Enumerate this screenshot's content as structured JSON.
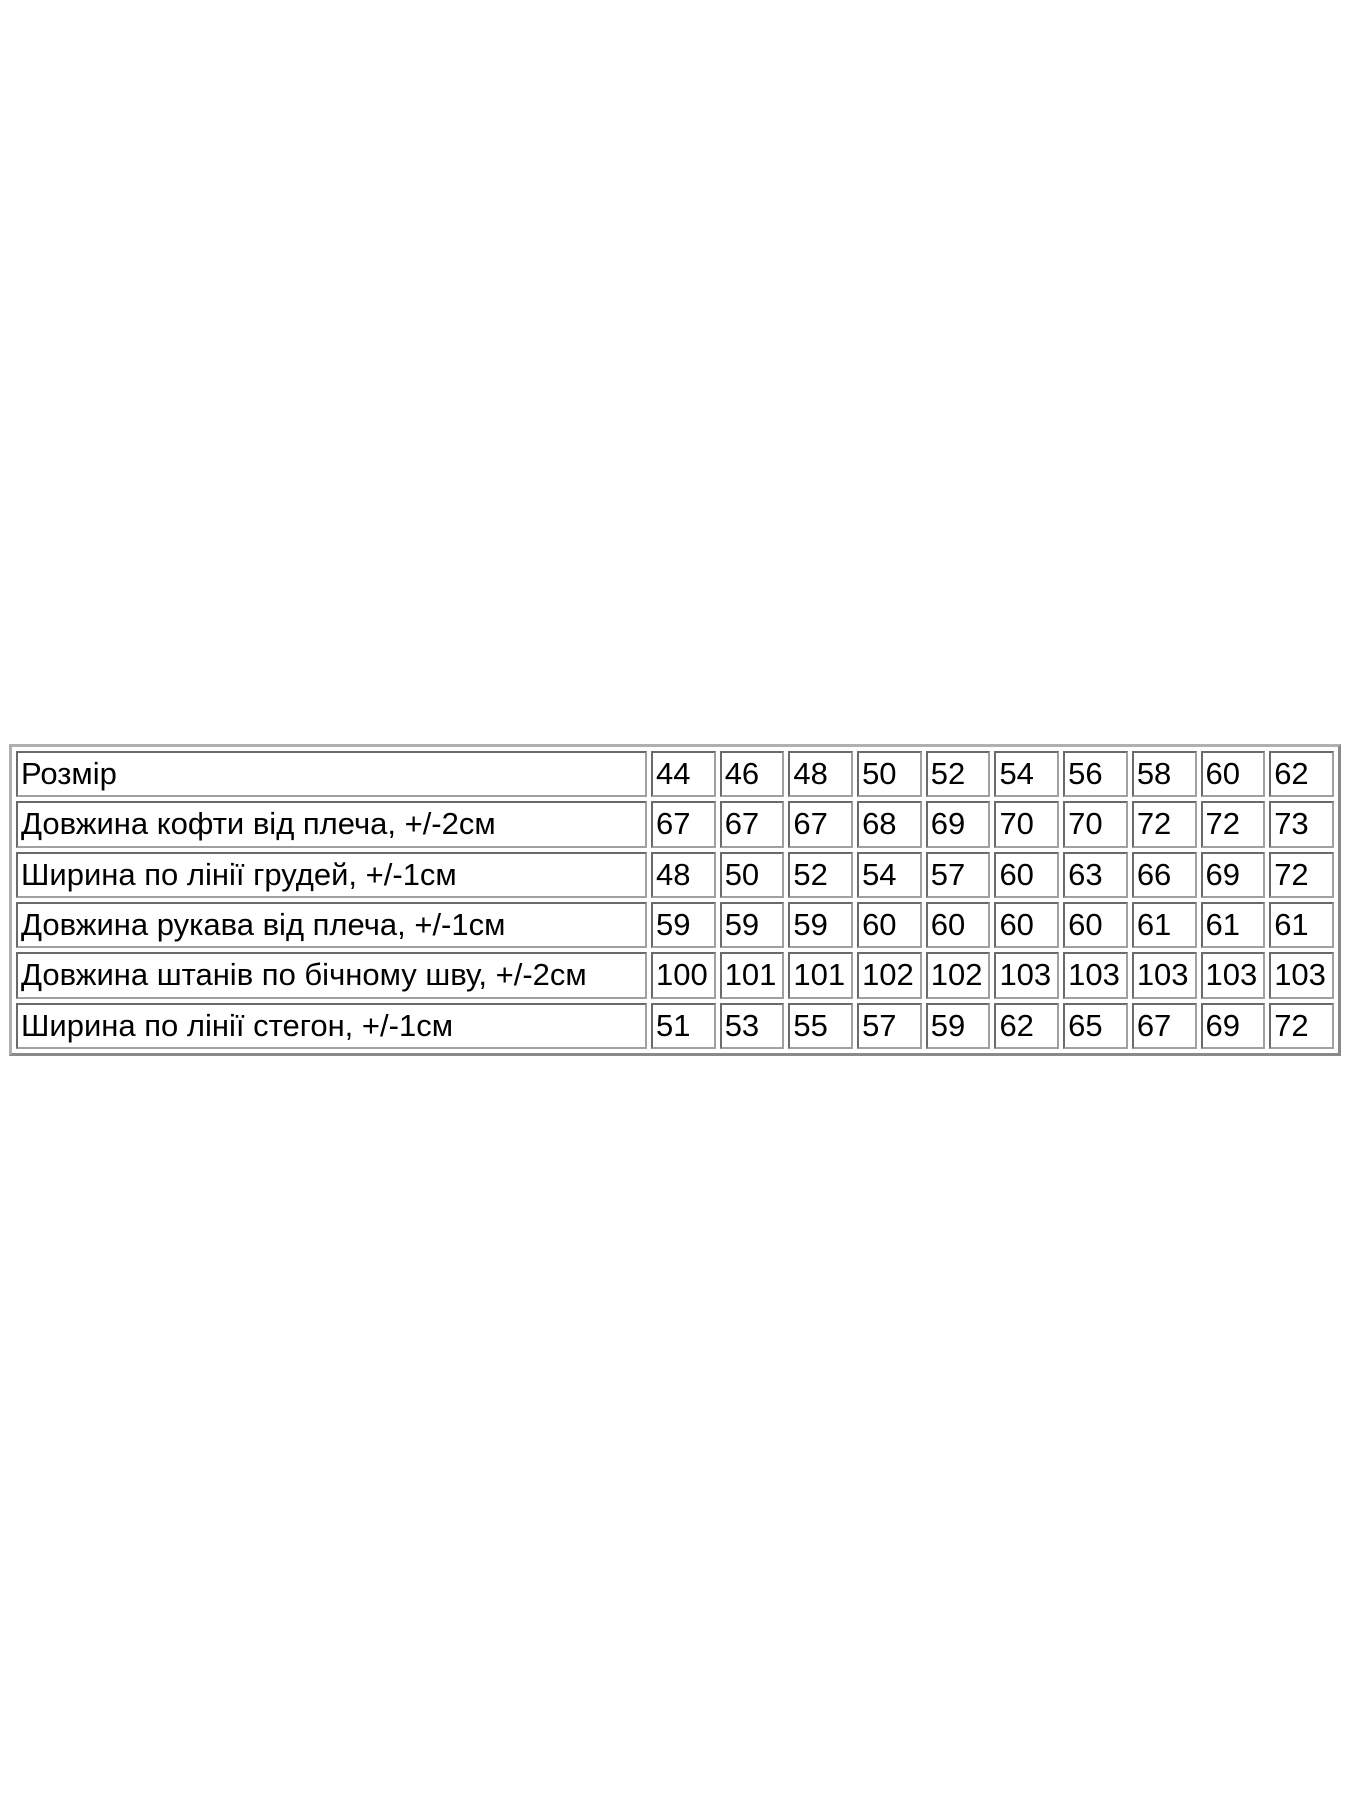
{
  "size_table": {
    "rows": [
      {
        "label": "Розмір",
        "values": [
          "44",
          "46",
          "48",
          "50",
          "52",
          "54",
          "56",
          "58",
          "60",
          "62"
        ]
      },
      {
        "label": "Довжина кофти від плеча, +/-2см",
        "values": [
          "67",
          "67",
          "67",
          "68",
          "69",
          "70",
          "70",
          "72",
          "72",
          "73"
        ]
      },
      {
        "label": "Ширина по лінії грудей, +/-1см",
        "values": [
          "48",
          "50",
          "52",
          "54",
          "57",
          "60",
          "63",
          "66",
          "69",
          "72"
        ]
      },
      {
        "label": "Довжина рукава від плеча, +/-1см",
        "values": [
          "59",
          "59",
          "59",
          "60",
          "60",
          "60",
          "60",
          "61",
          "61",
          "61"
        ]
      },
      {
        "label": "Довжина штанів по бічному шву, +/-2см",
        "values": [
          "100",
          "101",
          "101",
          "102",
          "102",
          "103",
          "103",
          "103",
          "103",
          "103"
        ]
      },
      {
        "label": "Ширина по лінії стегон, +/-1см",
        "values": [
          "51",
          "53",
          "55",
          "57",
          "59",
          "62",
          "65",
          "67",
          "69",
          "72"
        ]
      }
    ]
  }
}
